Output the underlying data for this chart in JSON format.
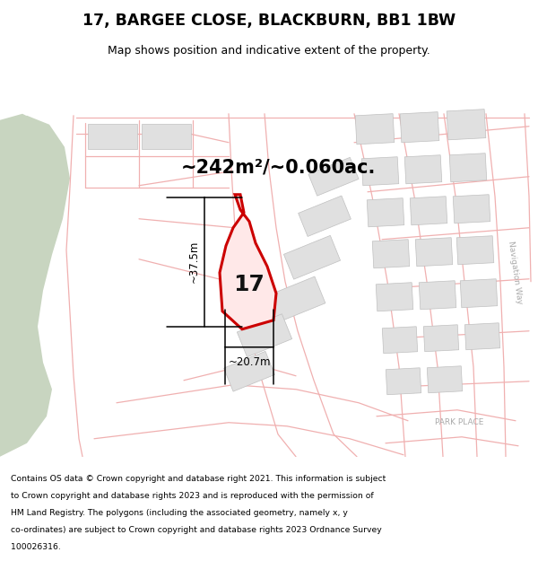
{
  "title": "17, BARGEE CLOSE, BLACKBURN, BB1 1BW",
  "subtitle": "Map shows position and indicative extent of the property.",
  "area_text": "~242m²/~0.060ac.",
  "dim_width": "~20.7m",
  "dim_height": "~37.5m",
  "plot_number": "17",
  "footer_lines": [
    "Contains OS data © Crown copyright and database right 2021. This information is subject",
    "to Crown copyright and database rights 2023 and is reproduced with the permission of",
    "HM Land Registry. The polygons (including the associated geometry, namely x, y",
    "co-ordinates) are subject to Crown copyright and database rights 2023 Ordnance Survey",
    "100026316."
  ],
  "bg_color": "#ffffff",
  "road_color": "#f0b0b0",
  "red_color": "#cc0000",
  "prop_fill": "#ffe8e8",
  "green_color": "#c8d5c0",
  "building_fill": "#e0e0e0",
  "building_edge": "#c0c0c0",
  "nav_text": "Navigation Way",
  "park_text": "PARK PLACE"
}
